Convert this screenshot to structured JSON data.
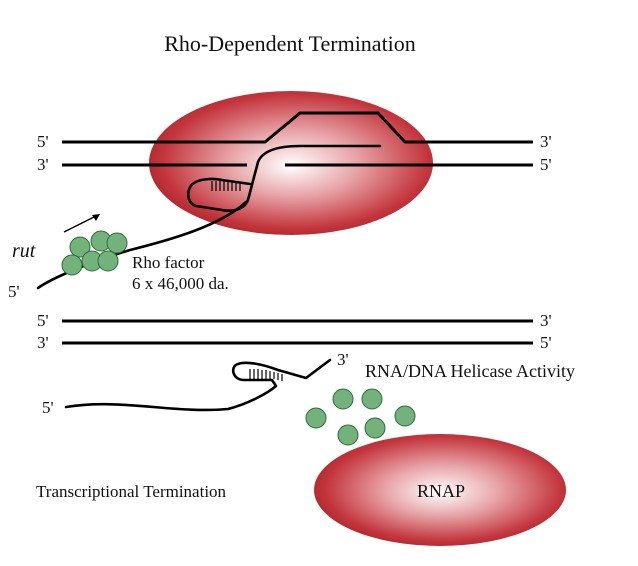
{
  "title": "Rho-Dependent Termination",
  "top_panel": {
    "dna_end_labels": {
      "top_left": "5'",
      "top_right": "3'",
      "bottom_left": "3'",
      "bottom_right": "5'"
    },
    "rna_5prime_label": "5'",
    "rut_label": "rut",
    "rho_factor_label": "Rho factor",
    "rho_factor_mass": "6 x 46,000 da."
  },
  "bottom_panel": {
    "dna_end_labels": {
      "top_left": "5'",
      "top_right": "3'",
      "bottom_left": "3'",
      "bottom_right": "5'"
    },
    "rna_5prime_label": "5'",
    "rna_3prime_label": "3'",
    "helicase_label": "RNA/DNA Helicase Activity",
    "termination_label": "Transcriptional Termination",
    "rnap_label": "RNAP"
  },
  "colors": {
    "polymerase": "#c0282e",
    "rho_subunit": "#74b27c",
    "strand": "#000000"
  }
}
